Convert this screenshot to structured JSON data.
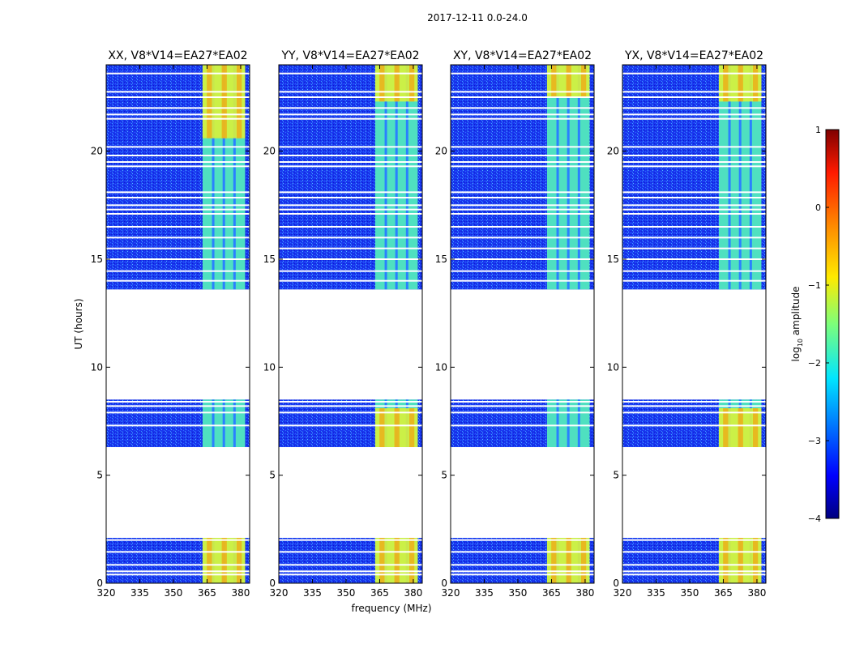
{
  "chart_data": {
    "type": "heatmap",
    "suptitle": "2017-12-11 0.0-24.0",
    "xlabel": "frequency (MHz)",
    "ylabel": "UT (hours)",
    "xlim": [
      320,
      384
    ],
    "ylim": [
      0,
      24
    ],
    "xticks": [
      "320",
      "335",
      "350",
      "365",
      "380"
    ],
    "yticks": [
      "0",
      "5",
      "10",
      "15",
      "20"
    ],
    "colorbar": {
      "label": "log",
      "label_sub": "10",
      "label_rest": " amplitude",
      "range": [
        -4,
        1
      ],
      "ticks": [
        "1",
        "0",
        "−1",
        "−2",
        "−3",
        "−4"
      ]
    },
    "panels": [
      {
        "title": "XX, V8*V14=EA27*EA02",
        "bright_band_mhz": [
          363,
          382
        ],
        "strong_segments_ut": [
          [
            0,
            2.1
          ],
          [
            20.6,
            24
          ]
        ]
      },
      {
        "title": "YY, V8*V14=EA27*EA02",
        "bright_band_mhz": [
          363,
          382
        ],
        "strong_segments_ut": [
          [
            0,
            2.1
          ],
          [
            6.3,
            8.1
          ],
          [
            22.3,
            24
          ]
        ]
      },
      {
        "title": "XY, V8*V14=EA27*EA02",
        "bright_band_mhz": [
          363,
          382
        ],
        "strong_segments_ut": [
          [
            0,
            2.1
          ],
          [
            22.5,
            24
          ]
        ]
      },
      {
        "title": "YX, V8*V14=EA27*EA02",
        "bright_band_mhz": [
          363,
          382
        ],
        "strong_segments_ut": [
          [
            0,
            2.1
          ],
          [
            6.3,
            8.1
          ],
          [
            22.3,
            24
          ]
        ]
      }
    ],
    "data_segments_ut": [
      [
        0,
        2.1
      ],
      [
        6.3,
        8.5
      ],
      [
        13.6,
        24
      ]
    ],
    "flagged_times_ut": [
      0.4,
      0.55,
      0.85,
      1.45,
      2.0,
      7.3,
      7.9,
      8.2,
      8.4,
      14.0,
      14.45,
      15.0,
      15.5,
      16.0,
      16.5,
      17.1,
      17.3,
      17.5,
      17.85,
      18.1,
      19.3,
      19.5,
      19.8,
      20.2,
      21.5,
      21.7,
      22.0,
      22.5,
      22.75,
      23.6
    ]
  }
}
